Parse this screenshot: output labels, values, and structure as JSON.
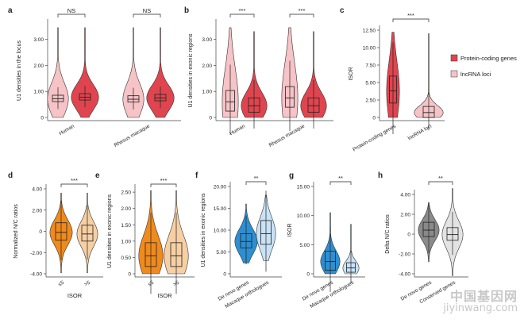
{
  "chart_data": [
    {
      "panel": "a",
      "type": "violin",
      "ylabel": "U1 densities in the locus",
      "yticks": [
        "0",
        "1.00",
        "2.00",
        "3.00"
      ],
      "ylim": [
        0,
        3.6
      ],
      "categories": [
        "Human",
        "Rhesus macaque"
      ],
      "series": [
        {
          "name": "Protein-coding genes",
          "median": [
            0.78,
            0.75
          ]
        },
        {
          "name": "lncRNA loci",
          "median": [
            0.72,
            0.7
          ]
        }
      ],
      "significance": [
        "NS",
        "NS"
      ]
    },
    {
      "panel": "b",
      "type": "violin",
      "ylabel": "U1 densities in exonic regions",
      "yticks": [
        "0",
        "1.00",
        "2.00",
        "3.00"
      ],
      "ylim": [
        0,
        3.6
      ],
      "categories": [
        "Human",
        "Rhesus macaque"
      ],
      "series": [
        {
          "name": "lncRNA loci",
          "median": [
            0.6,
            0.75
          ]
        },
        {
          "name": "Protein-coding genes",
          "median": [
            0.45,
            0.45
          ]
        }
      ],
      "significance": [
        "***",
        "***"
      ]
    },
    {
      "panel": "c",
      "type": "violin",
      "ylabel": "ISOR",
      "yticks": [
        "0",
        "2.50",
        "5.00",
        "7.50",
        "10.00",
        "12.50"
      ],
      "ylim": [
        0,
        12.5
      ],
      "categories": [
        "Protein-coding genes",
        "lncRNA loci"
      ],
      "median": [
        3.8,
        0.7
      ],
      "significance": [
        "***"
      ],
      "legend": [
        {
          "name": "Protein-coding genes",
          "color": "#e0454f"
        },
        {
          "name": "lncRNA loci",
          "color": "#f6c3c6"
        }
      ]
    },
    {
      "panel": "d",
      "type": "violin",
      "ylabel": "Normalized N/C ratios",
      "xlabel": "ISOR",
      "yticks": [
        "-4.00",
        "-2.00",
        "0",
        "2.00",
        "4.00"
      ],
      "ylim": [
        -4,
        4
      ],
      "categories": [
        "≤5",
        ">5"
      ],
      "median": [
        -0.1,
        -0.25
      ],
      "significance": [
        "***"
      ]
    },
    {
      "panel": "e",
      "type": "violin",
      "ylabel": "U1 densities in exonic regions",
      "xlabel": "ISOR",
      "yticks": [
        "0",
        "0.50",
        "1.00",
        "1.50",
        "2.00",
        "2.50"
      ],
      "ylim": [
        0,
        2.6
      ],
      "categories": [
        "≤5",
        ">5"
      ],
      "median": [
        0.55,
        0.55
      ],
      "significance": [
        "***"
      ]
    },
    {
      "panel": "f",
      "type": "violin",
      "ylabel": "U1 densities in exonic regions",
      "yticks": [
        "0",
        "5.00",
        "10.00",
        "15.00",
        "20.00"
      ],
      "ylim": [
        0,
        20
      ],
      "categories": [
        "De novo genes",
        "Macaque orthologues"
      ],
      "median": [
        7.4,
        9.2
      ],
      "significance": [
        "**"
      ]
    },
    {
      "panel": "g",
      "type": "violin",
      "ylabel": "ISOR",
      "yticks": [
        "0",
        "5.00",
        "10.00",
        "15.00"
      ],
      "ylim": [
        0,
        15
      ],
      "categories": [
        "De novo genes",
        "Macaque orthologues"
      ],
      "median": [
        2.1,
        1.0
      ],
      "significance": [
        "**"
      ]
    },
    {
      "panel": "h",
      "type": "violin",
      "ylabel": "Delta N/C ratios",
      "yticks": [
        "-4.00",
        "-2.00",
        "0",
        "2.00",
        "4.00"
      ],
      "ylim": [
        -4,
        4
      ],
      "categories": [
        "De novo genes",
        "Conserved genes"
      ],
      "median": [
        0.4,
        -0.05
      ],
      "significance": [
        "**"
      ]
    }
  ],
  "watermark": {
    "line1": "中国基因网",
    "line2": "jiyinwang.com"
  }
}
